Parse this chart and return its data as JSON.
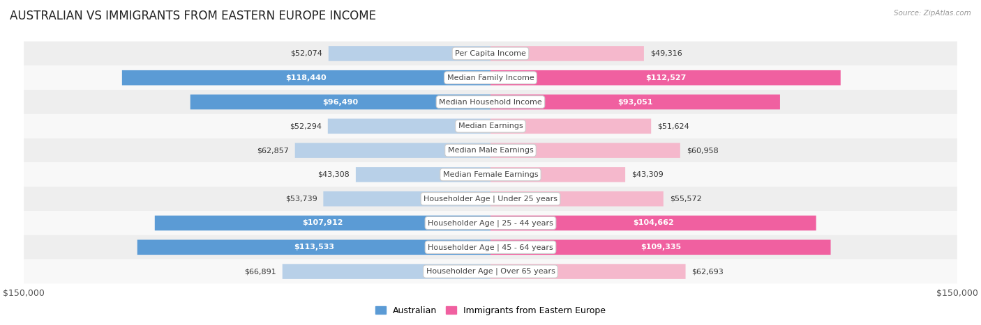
{
  "title": "AUSTRALIAN VS IMMIGRANTS FROM EASTERN EUROPE INCOME",
  "source": "Source: ZipAtlas.com",
  "categories": [
    "Per Capita Income",
    "Median Family Income",
    "Median Household Income",
    "Median Earnings",
    "Median Male Earnings",
    "Median Female Earnings",
    "Householder Age | Under 25 years",
    "Householder Age | 25 - 44 years",
    "Householder Age | 45 - 64 years",
    "Householder Age | Over 65 years"
  ],
  "australian_values": [
    52074,
    118440,
    96490,
    52294,
    62857,
    43308,
    53739,
    107912,
    113533,
    66891
  ],
  "immigrant_values": [
    49316,
    112527,
    93051,
    51624,
    60958,
    43309,
    55572,
    104662,
    109335,
    62693
  ],
  "australian_labels": [
    "$52,074",
    "$118,440",
    "$96,490",
    "$52,294",
    "$62,857",
    "$43,308",
    "$53,739",
    "$107,912",
    "$113,533",
    "$66,891"
  ],
  "immigrant_labels": [
    "$49,316",
    "$112,527",
    "$93,051",
    "$51,624",
    "$60,958",
    "$43,309",
    "$55,572",
    "$104,662",
    "$109,335",
    "$62,693"
  ],
  "max_value": 150000,
  "bar_height": 0.62,
  "australian_color_light": "#b8d0e8",
  "australian_color_dark": "#5b9bd5",
  "immigrant_color_light": "#f5b8cc",
  "immigrant_color_dark": "#f060a0",
  "label_color_threshold": 75000,
  "bg_row_color": "#eeeeee",
  "bg_row_alt_color": "#f8f8f8",
  "title_fontsize": 12,
  "label_fontsize": 8,
  "category_fontsize": 8,
  "axis_label_fontsize": 9,
  "legend_fontsize": 9
}
